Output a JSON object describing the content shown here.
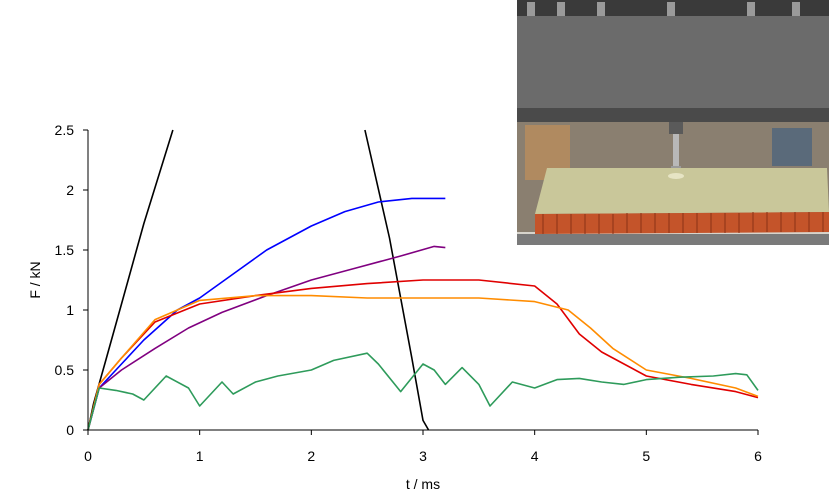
{
  "chart_data": {
    "type": "line",
    "xlabel": "t / ms",
    "ylabel": "F / kN",
    "xlim": [
      0,
      6
    ],
    "ylim": [
      0,
      2.5
    ],
    "xticks": [
      "0",
      "1",
      "2",
      "3",
      "4",
      "5",
      "6"
    ],
    "yticks": [
      "0",
      "0.5",
      "1",
      "1.5",
      "2",
      "2.5"
    ],
    "grid": false,
    "legend": "none",
    "series": [
      {
        "color": "#000000",
        "x": [
          0,
          0.05,
          0.15,
          0.3,
          0.5,
          0.76
        ],
        "y": [
          0,
          0.22,
          0.55,
          1.05,
          1.72,
          2.5
        ]
      },
      {
        "color": "#000000",
        "x": [
          2.48,
          2.7,
          2.9,
          3.0,
          3.05
        ],
        "y": [
          2.5,
          1.6,
          0.6,
          0.08,
          0
        ]
      },
      {
        "color": "#0000ff",
        "x": [
          0,
          0.1,
          0.3,
          0.5,
          0.8,
          1.0,
          1.3,
          1.6,
          2.0,
          2.3,
          2.6,
          2.9,
          3.2
        ],
        "y": [
          0,
          0.35,
          0.55,
          0.75,
          1.0,
          1.1,
          1.3,
          1.5,
          1.7,
          1.82,
          1.9,
          1.93,
          1.93
        ]
      },
      {
        "color": "#800080",
        "x": [
          0,
          0.1,
          0.3,
          0.6,
          0.9,
          1.2,
          1.6,
          2.0,
          2.4,
          2.8,
          3.1,
          3.2
        ],
        "y": [
          0,
          0.35,
          0.5,
          0.68,
          0.85,
          0.98,
          1.12,
          1.25,
          1.35,
          1.45,
          1.53,
          1.52
        ]
      },
      {
        "color": "#e00000",
        "x": [
          0,
          0.1,
          0.3,
          0.6,
          1.0,
          1.5,
          2.0,
          2.5,
          3.0,
          3.5,
          4.0,
          4.2,
          4.4,
          4.6,
          5.0,
          5.4,
          5.8,
          6.0
        ],
        "y": [
          0,
          0.38,
          0.6,
          0.9,
          1.05,
          1.12,
          1.18,
          1.22,
          1.25,
          1.25,
          1.2,
          1.05,
          0.8,
          0.65,
          0.45,
          0.38,
          0.32,
          0.27
        ]
      },
      {
        "color": "#ff8c00",
        "x": [
          0,
          0.1,
          0.3,
          0.6,
          1.0,
          1.5,
          2.0,
          2.5,
          3.0,
          3.5,
          4.0,
          4.3,
          4.5,
          4.7,
          5.0,
          5.4,
          5.8,
          6.0
        ],
        "y": [
          0,
          0.38,
          0.6,
          0.92,
          1.08,
          1.12,
          1.12,
          1.1,
          1.1,
          1.1,
          1.07,
          1.0,
          0.85,
          0.68,
          0.5,
          0.43,
          0.35,
          0.28
        ]
      },
      {
        "color": "#2e9b5b",
        "x": [
          0,
          0.1,
          0.25,
          0.4,
          0.5,
          0.7,
          0.9,
          1.0,
          1.2,
          1.3,
          1.5,
          1.7,
          2.0,
          2.2,
          2.5,
          2.6,
          2.8,
          3.0,
          3.1,
          3.2,
          3.35,
          3.5,
          3.6,
          3.8,
          4.0,
          4.2,
          4.4,
          4.6,
          4.8,
          5.0,
          5.3,
          5.6,
          5.8,
          5.9,
          6.0
        ],
        "y": [
          0,
          0.35,
          0.33,
          0.3,
          0.25,
          0.45,
          0.35,
          0.2,
          0.4,
          0.3,
          0.4,
          0.45,
          0.5,
          0.58,
          0.64,
          0.55,
          0.32,
          0.55,
          0.5,
          0.38,
          0.52,
          0.38,
          0.2,
          0.4,
          0.35,
          0.42,
          0.43,
          0.4,
          0.38,
          0.42,
          0.44,
          0.45,
          0.47,
          0.46,
          0.33
        ]
      }
    ]
  },
  "photo": {
    "colors": {
      "frame": "#6b6b6b",
      "panel": "#c9c79a",
      "core": "#c4542a"
    }
  }
}
